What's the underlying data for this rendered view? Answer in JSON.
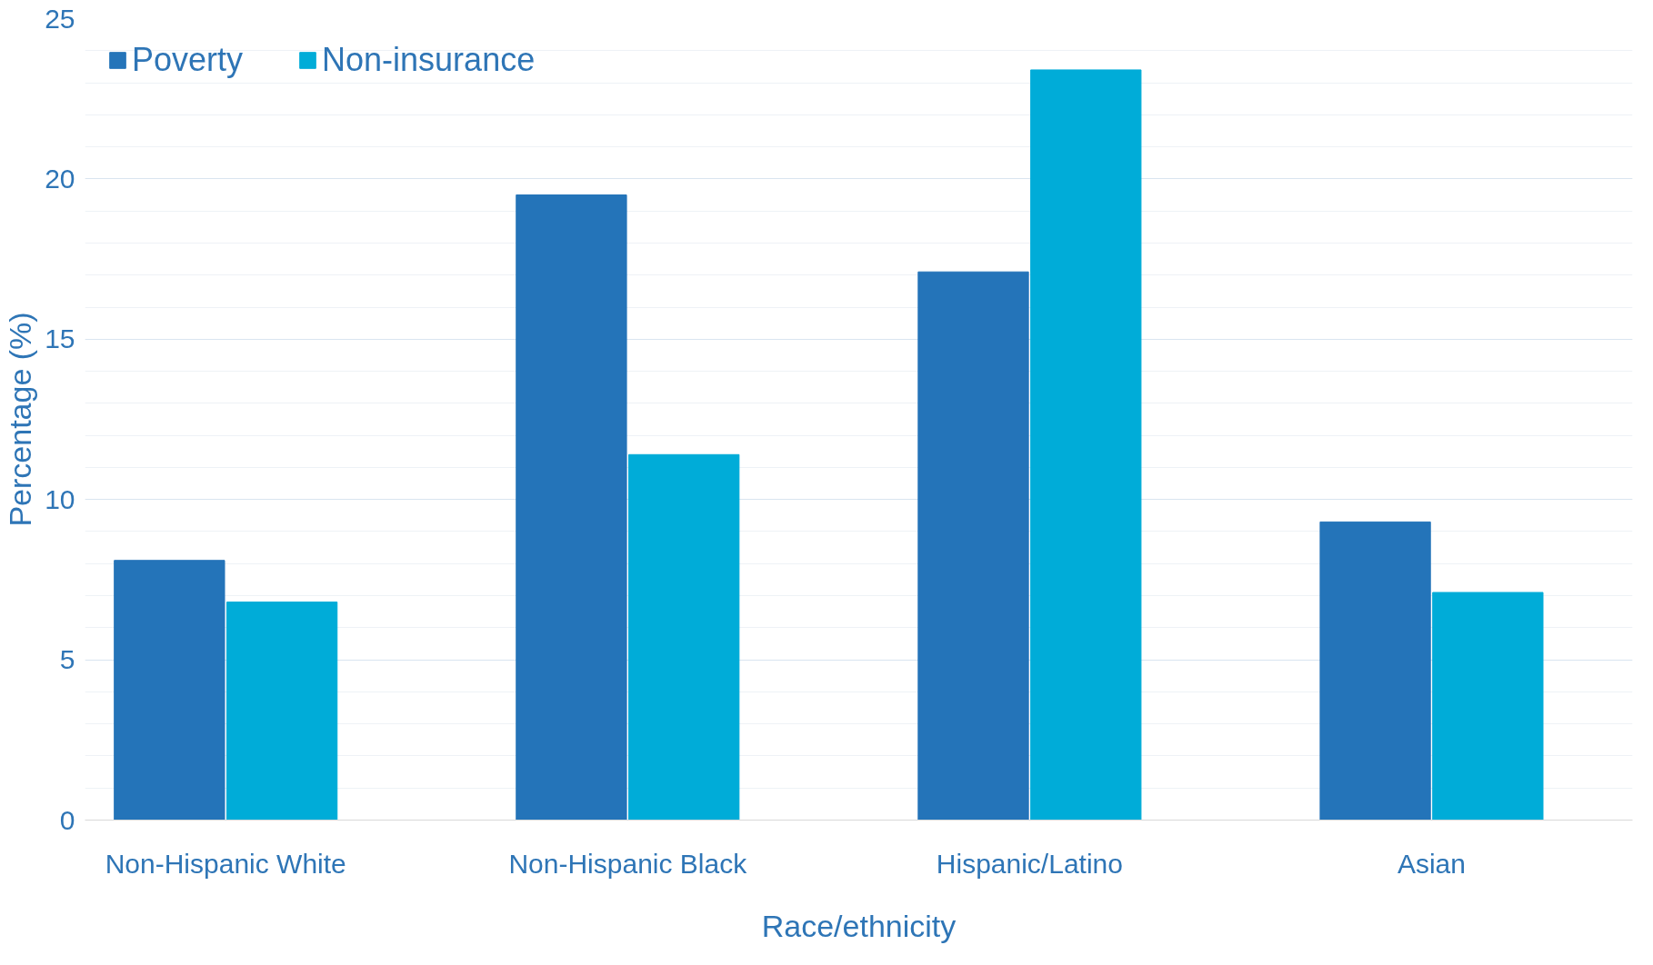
{
  "chart_data": {
    "type": "bar",
    "xlabel": "Race/ethnicity",
    "ylabel": "Percentage (%)",
    "categories": [
      "Non-Hispanic White",
      "Non-Hispanic Black",
      "Hispanic/Latino",
      "Asian"
    ],
    "series": [
      {
        "name": "Poverty",
        "color": "#2474b9",
        "values": [
          8.1,
          19.5,
          17.1,
          9.3
        ]
      },
      {
        "name": "Non-insurance",
        "color": "#00acd8",
        "values": [
          6.8,
          11.4,
          23.4,
          7.1
        ]
      }
    ],
    "ylim": [
      0,
      25
    ],
    "yticks": [
      0,
      5,
      10,
      15,
      20,
      25
    ],
    "grid": "y",
    "legend": "top left"
  }
}
